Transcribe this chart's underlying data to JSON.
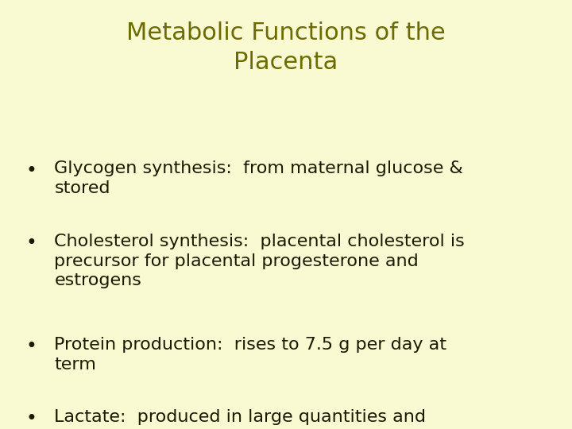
{
  "title_line1": "Metabolic Functions of the",
  "title_line2": "Placenta",
  "title_color": "#6b6b00",
  "background_color": "#FAFAD2",
  "bullet_text_color": "#1a1a00",
  "bullets": [
    "Glycogen synthesis:  from maternal glucose &\nstored",
    "Cholesterol synthesis:  placental cholesterol is\nprecursor for placental progesterone and\nestrogens",
    "Protein production:  rises to 7.5 g per day at\nterm",
    "Lactate:  produced in large quantities and\nneeds to be removed"
  ],
  "bullet_line_counts": [
    2,
    3,
    2,
    2
  ],
  "title_fontsize": 22,
  "bullet_fontsize": 16,
  "fig_width": 7.2,
  "fig_height": 5.4,
  "dpi": 100
}
